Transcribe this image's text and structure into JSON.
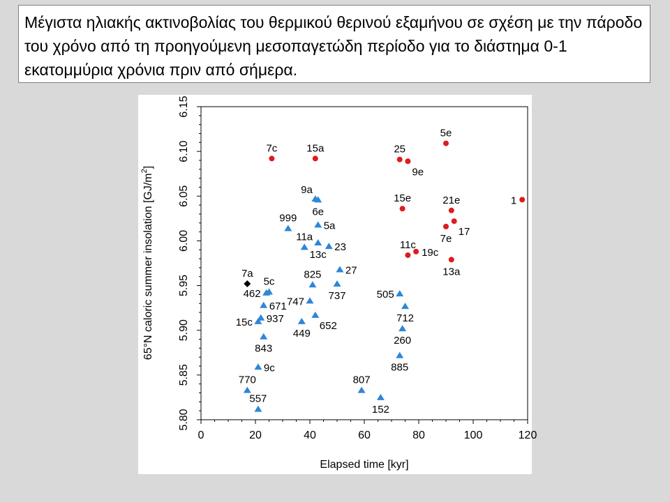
{
  "slide": {
    "title": "Μέγιστα ηλιακής ακτινοβολίας του θερμικού θερινού εξαμήνου σε σχέση με την πάροδο του χρόνο από τη προηγούμενη μεσοπαγετώδη περίοδο για το διάστημα 0-1 εκατομμύρια χρόνια πριν από σήμερα."
  },
  "chart_data": {
    "type": "scatter",
    "title": "",
    "xlabel": "Elapsed time [kyr]",
    "ylabel_main": "65°N caloric summer insolation [GJ/m",
    "ylabel_sup": "2",
    "ylabel_end": "]",
    "xlim": [
      0,
      120
    ],
    "ylim": [
      5.8,
      6.15
    ],
    "x_ticks": [
      0,
      20,
      40,
      60,
      80,
      100,
      120
    ],
    "y_ticks": [
      5.8,
      5.85,
      5.9,
      5.95,
      6.0,
      6.05,
      6.1,
      6.15
    ],
    "grid": false,
    "colors": {
      "circle": "#dd1c1c",
      "triangle": "#2e86d6",
      "diamond": "#000000"
    },
    "points": [
      {
        "label": "7c",
        "x": 26,
        "y": 6.092,
        "marker": "circle",
        "lpos": "above"
      },
      {
        "label": "15a",
        "x": 42,
        "y": 6.092,
        "marker": "circle",
        "lpos": "above"
      },
      {
        "label": "25",
        "x": 73,
        "y": 6.091,
        "marker": "circle",
        "lpos": "above"
      },
      {
        "label": "9e",
        "x": 76,
        "y": 6.089,
        "marker": "circle",
        "lpos": "below-right"
      },
      {
        "label": "5e",
        "x": 90,
        "y": 6.109,
        "marker": "circle",
        "lpos": "above"
      },
      {
        "label": "15e",
        "x": 74,
        "y": 6.036,
        "marker": "circle",
        "lpos": "above"
      },
      {
        "label": "21e",
        "x": 92,
        "y": 6.034,
        "marker": "circle",
        "lpos": "above"
      },
      {
        "label": "1",
        "x": 118,
        "y": 6.046,
        "marker": "circle",
        "lpos": "left"
      },
      {
        "label": "17",
        "x": 93,
        "y": 6.022,
        "marker": "circle",
        "lpos": "below-right"
      },
      {
        "label": "7e",
        "x": 90,
        "y": 6.016,
        "marker": "circle",
        "lpos": "below"
      },
      {
        "label": "11c",
        "x": 76,
        "y": 5.984,
        "marker": "circle",
        "lpos": "above"
      },
      {
        "label": "19c",
        "x": 79,
        "y": 5.988,
        "marker": "circle",
        "lpos": "right"
      },
      {
        "label": "13a",
        "x": 92,
        "y": 5.979,
        "marker": "circle",
        "lpos": "below"
      },
      {
        "label": "9a",
        "x": 42,
        "y": 6.047,
        "marker": "triangle",
        "lpos": "above-left"
      },
      {
        "label": "6e",
        "x": 43,
        "y": 6.046,
        "marker": "triangle",
        "lpos": "below"
      },
      {
        "label": "999",
        "x": 32,
        "y": 6.014,
        "marker": "triangle",
        "lpos": "above"
      },
      {
        "label": "5a",
        "x": 43,
        "y": 6.018,
        "marker": "triangle",
        "lpos": "right"
      },
      {
        "label": "11a",
        "x": 38,
        "y": 5.993,
        "marker": "triangle",
        "lpos": "above"
      },
      {
        "label": "13c",
        "x": 43,
        "y": 5.998,
        "marker": "triangle",
        "lpos": "below"
      },
      {
        "label": "23",
        "x": 47,
        "y": 5.994,
        "marker": "triangle",
        "lpos": "right"
      },
      {
        "label": "27",
        "x": 51,
        "y": 5.968,
        "marker": "triangle",
        "lpos": "right"
      },
      {
        "label": "825",
        "x": 41,
        "y": 5.951,
        "marker": "triangle",
        "lpos": "above"
      },
      {
        "label": "737",
        "x": 50,
        "y": 5.952,
        "marker": "triangle",
        "lpos": "below"
      },
      {
        "label": "7a",
        "x": 17,
        "y": 5.952,
        "marker": "diamond",
        "lpos": "above"
      },
      {
        "label": "5c",
        "x": 25,
        "y": 5.943,
        "marker": "triangle",
        "lpos": "above"
      },
      {
        "label": "462",
        "x": 24,
        "y": 5.942,
        "marker": "triangle",
        "lpos": "left"
      },
      {
        "label": "671",
        "x": 23,
        "y": 5.928,
        "marker": "triangle",
        "lpos": "right"
      },
      {
        "label": "747",
        "x": 40,
        "y": 5.933,
        "marker": "triangle",
        "lpos": "left"
      },
      {
        "label": "505",
        "x": 73,
        "y": 5.941,
        "marker": "triangle",
        "lpos": "left"
      },
      {
        "label": "712",
        "x": 75,
        "y": 5.927,
        "marker": "triangle",
        "lpos": "below"
      },
      {
        "label": "937",
        "x": 22,
        "y": 5.914,
        "marker": "triangle",
        "lpos": "right"
      },
      {
        "label": "15c",
        "x": 21,
        "y": 5.91,
        "marker": "triangle",
        "lpos": "left"
      },
      {
        "label": "449",
        "x": 37,
        "y": 5.91,
        "marker": "triangle",
        "lpos": "below"
      },
      {
        "label": "652",
        "x": 42,
        "y": 5.917,
        "marker": "triangle",
        "lpos": "below-right"
      },
      {
        "label": "260",
        "x": 74,
        "y": 5.902,
        "marker": "triangle",
        "lpos": "below"
      },
      {
        "label": "843",
        "x": 23,
        "y": 5.893,
        "marker": "triangle",
        "lpos": "below"
      },
      {
        "label": "885",
        "x": 73,
        "y": 5.872,
        "marker": "triangle",
        "lpos": "below"
      },
      {
        "label": "9c",
        "x": 21,
        "y": 5.859,
        "marker": "triangle",
        "lpos": "right"
      },
      {
        "label": "770",
        "x": 17,
        "y": 5.833,
        "marker": "triangle",
        "lpos": "above"
      },
      {
        "label": "557",
        "x": 21,
        "y": 5.812,
        "marker": "triangle",
        "lpos": "above"
      },
      {
        "label": "807",
        "x": 59,
        "y": 5.833,
        "marker": "triangle",
        "lpos": "above"
      },
      {
        "label": "152",
        "x": 66,
        "y": 5.825,
        "marker": "triangle",
        "lpos": "below"
      }
    ]
  }
}
